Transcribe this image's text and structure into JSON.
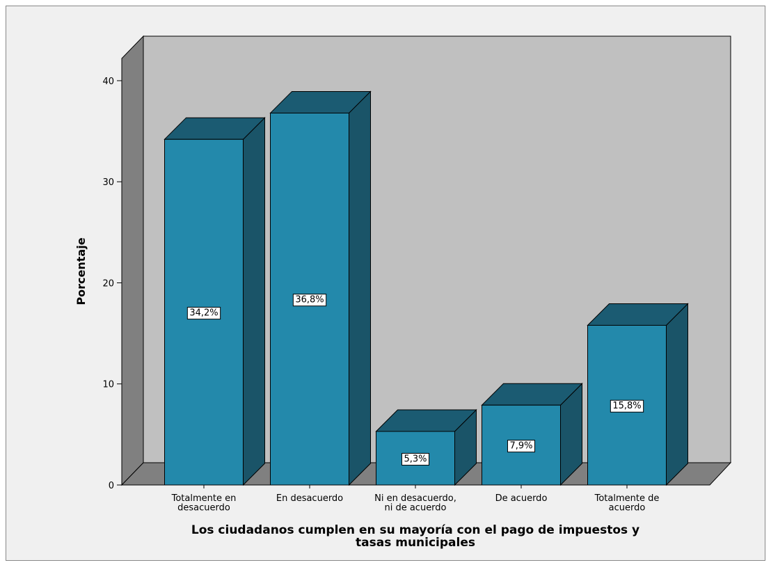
{
  "chart_data": {
    "type": "bar3d",
    "y_label": "Porcentaje",
    "x_label": "Los ciudadanos cumplen en su mayoría con el pago de impuestos y\ntasas municipales",
    "categories": [
      "Totalmente en\ndesacuerdo",
      "En desacuerdo",
      "Ni en desacuerdo,\nni de acuerdo",
      "De acuerdo",
      "Totalmente de\nacuerdo"
    ],
    "values": [
      34.2,
      36.8,
      5.3,
      7.9,
      15.8
    ],
    "value_labels": [
      "34,2%",
      "36,8%",
      "5,3%",
      "7,9%",
      "15,8%"
    ],
    "color": "#2389ab",
    "ylim": [
      0,
      42.2
    ],
    "yticks": [
      0,
      10,
      20,
      30,
      40
    ]
  }
}
